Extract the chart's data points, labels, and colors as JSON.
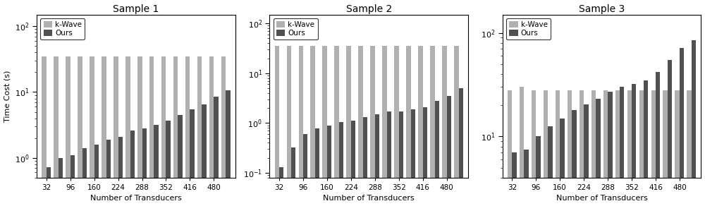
{
  "transducers": [
    32,
    64,
    96,
    128,
    160,
    192,
    224,
    256,
    288,
    320,
    352,
    384,
    416,
    448,
    480,
    512
  ],
  "sample1": {
    "title": "Sample 1",
    "kwave": [
      35,
      35,
      35,
      35,
      35,
      35,
      35,
      35,
      35,
      35,
      35,
      35,
      35,
      35,
      35,
      35
    ],
    "ours": [
      0.72,
      1.0,
      1.1,
      1.4,
      1.6,
      1.9,
      2.1,
      2.6,
      2.8,
      3.2,
      3.7,
      4.5,
      5.5,
      6.5,
      8.5,
      10.5
    ],
    "ylim": [
      0.5,
      150
    ],
    "yticks": [
      1,
      10,
      100
    ],
    "yticklabels": [
      "10$^0$",
      "10$^1$",
      "10$^2$"
    ]
  },
  "sample2": {
    "title": "Sample 2",
    "kwave": [
      35,
      35,
      35,
      35,
      35,
      35,
      35,
      35,
      35,
      35,
      35,
      35,
      35,
      35,
      35,
      35
    ],
    "ours": [
      0.13,
      0.32,
      0.6,
      0.78,
      0.9,
      1.05,
      1.1,
      1.3,
      1.5,
      1.7,
      1.7,
      1.9,
      2.1,
      2.8,
      3.5,
      5.0
    ],
    "ylim": [
      0.08,
      150
    ],
    "yticks": [
      0.1,
      1,
      10,
      100
    ],
    "yticklabels": [
      "10$^{-1}$",
      "10$^0$",
      "10$^1$",
      "10$^2$"
    ]
  },
  "sample3": {
    "title": "Sample 3",
    "kwave": [
      28,
      30,
      28,
      28,
      28,
      28,
      28,
      28,
      28,
      28,
      28,
      28,
      28,
      28,
      28,
      28
    ],
    "ours": [
      7.0,
      7.5,
      10.0,
      12.5,
      15.0,
      18.0,
      20.5,
      23.0,
      27.0,
      30.0,
      32.0,
      35.0,
      42.0,
      55.0,
      72.0,
      85.0
    ],
    "ylim": [
      4,
      150
    ],
    "yticks": [
      10,
      100
    ],
    "yticklabels": [
      "10$^1$",
      "10$^2$"
    ]
  },
  "color_kwave": "#b0b0b0",
  "color_ours": "#505050",
  "xlabel": "Number of Transducers",
  "ylabel": "Time Cost (s)",
  "legend_kwave": "k-Wave",
  "legend_ours": "Ours"
}
